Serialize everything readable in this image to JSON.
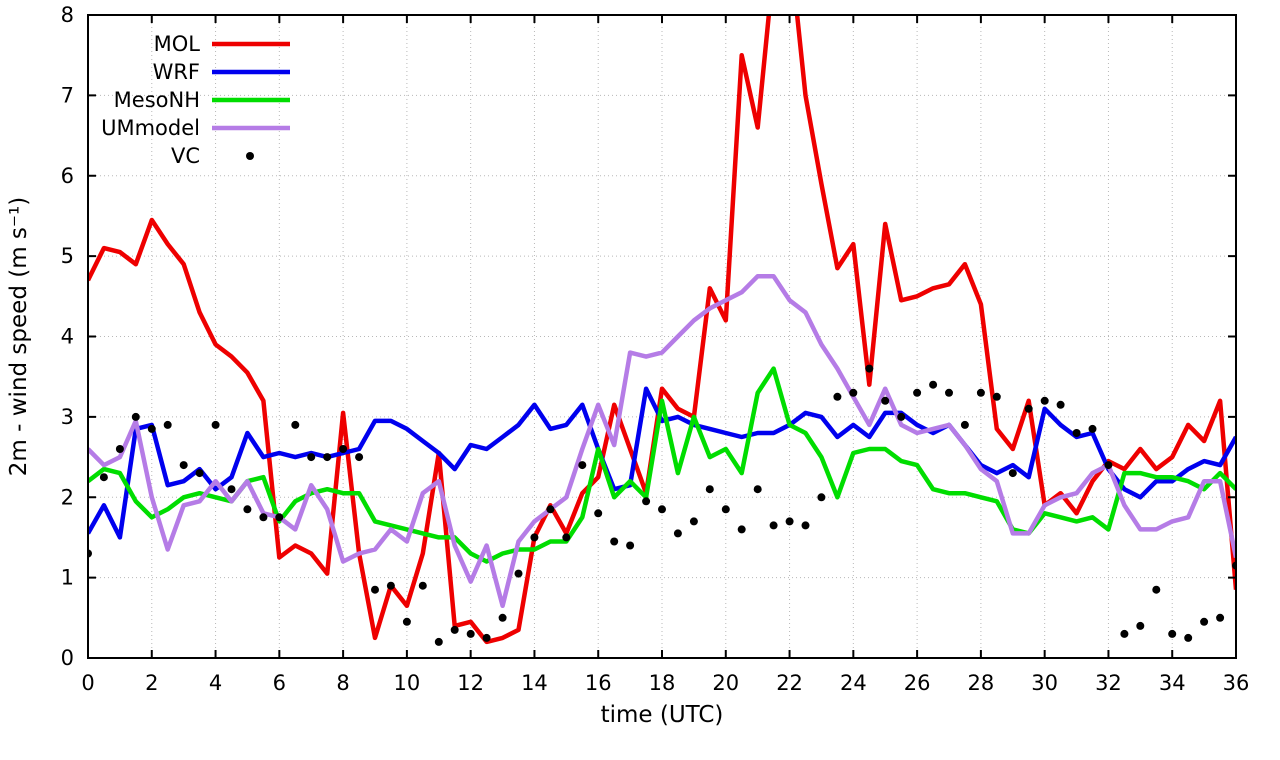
{
  "figure": {
    "background": "#ffffff"
  },
  "chart_data": {
    "type": "line",
    "title": "",
    "xlabel": "time (UTC)",
    "ylabel": "2m - wind speed  (m s⁻¹)",
    "xlim": [
      0,
      36
    ],
    "ylim": [
      0,
      8
    ],
    "xticks": [
      0,
      2,
      4,
      6,
      8,
      10,
      12,
      14,
      16,
      18,
      20,
      22,
      24,
      26,
      28,
      30,
      32,
      34,
      36
    ],
    "yticks": [
      0,
      1,
      2,
      3,
      4,
      5,
      6,
      7,
      8
    ],
    "grid": true,
    "grid_color": "#b8b8b8",
    "legend_position": "top-left",
    "x": [
      0,
      0.5,
      1,
      1.5,
      2,
      2.5,
      3,
      3.5,
      4,
      4.5,
      5,
      5.5,
      6,
      6.5,
      7,
      7.5,
      8,
      8.5,
      9,
      9.5,
      10,
      10.5,
      11,
      11.5,
      12,
      12.5,
      13,
      13.5,
      14,
      14.5,
      15,
      15.5,
      16,
      16.5,
      17,
      17.5,
      18,
      18.5,
      19,
      19.5,
      20,
      20.5,
      21,
      21.5,
      22,
      22.5,
      23,
      23.5,
      24,
      24.5,
      25,
      25.5,
      26,
      26.5,
      27,
      27.5,
      28,
      28.5,
      29,
      29.5,
      30,
      30.5,
      31,
      31.5,
      32,
      32.5,
      33,
      33.5,
      34,
      34.5,
      35,
      35.5,
      36
    ],
    "series": [
      {
        "name": "MOL",
        "type": "line",
        "color": "#ee0000",
        "values": [
          4.7,
          5.1,
          5.05,
          4.9,
          5.45,
          5.15,
          4.9,
          4.3,
          3.9,
          3.75,
          3.55,
          3.2,
          1.25,
          1.4,
          1.3,
          1.05,
          3.05,
          1.3,
          0.25,
          0.9,
          0.65,
          1.3,
          2.55,
          0.4,
          0.45,
          0.2,
          0.25,
          0.35,
          1.5,
          1.9,
          1.55,
          2.05,
          2.25,
          3.15,
          2.6,
          2.05,
          3.35,
          3.1,
          3.0,
          4.6,
          4.2,
          7.5,
          6.6,
          8.6,
          8.9,
          7.0,
          5.9,
          4.85,
          5.15,
          3.4,
          5.4,
          4.45,
          4.5,
          4.6,
          4.65,
          4.9,
          4.4,
          2.85,
          2.6,
          3.2,
          1.9,
          2.05,
          1.8,
          2.2,
          2.45,
          2.35,
          2.6,
          2.35,
          2.5,
          2.9,
          2.7,
          3.2,
          0.85
        ]
      },
      {
        "name": "WRF",
        "type": "line",
        "color": "#0000ee",
        "values": [
          1.55,
          1.9,
          1.5,
          2.85,
          2.9,
          2.15,
          2.2,
          2.35,
          2.1,
          2.25,
          2.8,
          2.5,
          2.55,
          2.5,
          2.55,
          2.5,
          2.55,
          2.6,
          2.95,
          2.95,
          2.85,
          2.7,
          2.55,
          2.35,
          2.65,
          2.6,
          2.75,
          2.9,
          3.15,
          2.85,
          2.9,
          3.15,
          2.6,
          2.1,
          2.15,
          3.35,
          2.95,
          3.0,
          2.9,
          2.85,
          2.8,
          2.75,
          2.8,
          2.8,
          2.9,
          3.05,
          3.0,
          2.75,
          2.9,
          2.75,
          3.05,
          3.05,
          2.9,
          2.8,
          2.9,
          2.65,
          2.4,
          2.3,
          2.4,
          2.25,
          3.1,
          2.9,
          2.75,
          2.8,
          2.35,
          2.1,
          2.0,
          2.2,
          2.2,
          2.35,
          2.45,
          2.4,
          2.75
        ]
      },
      {
        "name": "MesoNH",
        "type": "line",
        "color": "#00dd00",
        "values": [
          2.2,
          2.35,
          2.3,
          1.95,
          1.75,
          1.85,
          2.0,
          2.05,
          2.0,
          1.95,
          2.2,
          2.25,
          1.7,
          1.95,
          2.05,
          2.1,
          2.05,
          2.05,
          1.7,
          1.65,
          1.6,
          1.55,
          1.5,
          1.5,
          1.3,
          1.2,
          1.3,
          1.35,
          1.35,
          1.45,
          1.45,
          1.75,
          2.6,
          2.0,
          2.2,
          2.0,
          3.2,
          2.3,
          3.0,
          2.5,
          2.6,
          2.3,
          3.3,
          3.6,
          2.9,
          2.8,
          2.5,
          2.0,
          2.55,
          2.6,
          2.6,
          2.45,
          2.4,
          2.1,
          2.05,
          2.05,
          2.0,
          1.95,
          1.6,
          1.55,
          1.8,
          1.75,
          1.7,
          1.75,
          1.6,
          2.3,
          2.3,
          2.25,
          2.25,
          2.2,
          2.1,
          2.3,
          2.1
        ]
      },
      {
        "name": "UMmodel",
        "type": "line",
        "color": "#b57ce6",
        "values": [
          2.6,
          2.4,
          2.5,
          2.95,
          2.0,
          1.35,
          1.9,
          1.95,
          2.2,
          1.95,
          2.2,
          1.8,
          1.75,
          1.6,
          2.15,
          1.85,
          1.2,
          1.3,
          1.35,
          1.6,
          1.45,
          2.05,
          2.2,
          1.4,
          0.95,
          1.4,
          0.65,
          1.45,
          1.7,
          1.85,
          2.0,
          2.6,
          3.15,
          2.65,
          3.8,
          3.75,
          3.8,
          4.0,
          4.2,
          4.35,
          4.45,
          4.55,
          4.75,
          4.75,
          4.45,
          4.3,
          3.9,
          3.6,
          3.25,
          2.9,
          3.35,
          2.9,
          2.8,
          2.85,
          2.9,
          2.65,
          2.35,
          2.2,
          1.55,
          1.55,
          1.9,
          2.0,
          2.05,
          2.3,
          2.4,
          1.9,
          1.6,
          1.6,
          1.7,
          1.75,
          2.2,
          2.2,
          1.25
        ]
      },
      {
        "name": "VC",
        "type": "scatter",
        "color": "#000000",
        "values": [
          1.3,
          2.25,
          2.6,
          3.0,
          2.85,
          2.9,
          2.4,
          2.3,
          2.9,
          2.1,
          1.85,
          1.75,
          1.75,
          2.9,
          2.5,
          2.5,
          2.6,
          2.5,
          0.85,
          0.9,
          0.45,
          0.9,
          0.2,
          0.35,
          0.3,
          0.25,
          0.5,
          1.05,
          1.5,
          1.85,
          1.5,
          2.4,
          1.8,
          1.45,
          1.4,
          1.95,
          1.85,
          1.55,
          1.7,
          2.1,
          1.85,
          1.6,
          2.1,
          1.65,
          1.7,
          1.65,
          2.0,
          3.25,
          3.3,
          3.6,
          3.2,
          3.0,
          3.3,
          3.4,
          3.3,
          2.9,
          3.3,
          3.25,
          2.3,
          3.1,
          3.2,
          3.15,
          2.8,
          2.85,
          2.4,
          0.3,
          0.4,
          0.85,
          0.3,
          0.25,
          0.45,
          0.5,
          1.15
        ]
      }
    ]
  }
}
